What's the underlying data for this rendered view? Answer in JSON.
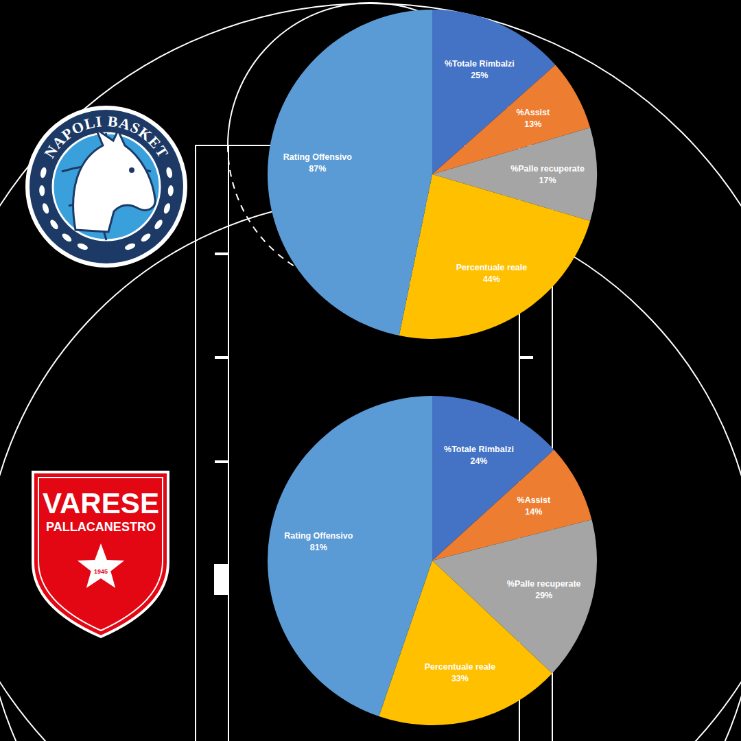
{
  "chart_data": [
    {
      "type": "pie",
      "categories": [
        "%Totale Rimbalzi",
        "%Assist",
        "%Palle recuperate",
        "Percentuale reale",
        "Rating Offensivo"
      ],
      "values": [
        25,
        13,
        17,
        44,
        87
      ],
      "value_labels": [
        "25%",
        "13%",
        "17%",
        "44%",
        "87%"
      ],
      "colors": [
        "#4472c4",
        "#ed7d31",
        "#a5a5a5",
        "#ffc000",
        "#5b9bd5"
      ],
      "data_labels": true
    },
    {
      "type": "pie",
      "categories": [
        "%Totale Rimbalzi",
        "%Assist",
        "%Palle recuperate",
        "Percentuale reale",
        "Rating Offensivo"
      ],
      "values": [
        24,
        14,
        29,
        33,
        81
      ],
      "value_labels": [
        "24%",
        "14%",
        "29%",
        "33%",
        "81%"
      ],
      "colors": [
        "#4472c4",
        "#ed7d31",
        "#a5a5a5",
        "#ffc000",
        "#5b9bd5"
      ],
      "data_labels": true
    }
  ],
  "logos": [
    {
      "text": "NAPOLI BASKET"
    },
    {
      "text": "VARESE",
      "subtitle": "PALLACANESTRO",
      "year": "1945"
    }
  ]
}
